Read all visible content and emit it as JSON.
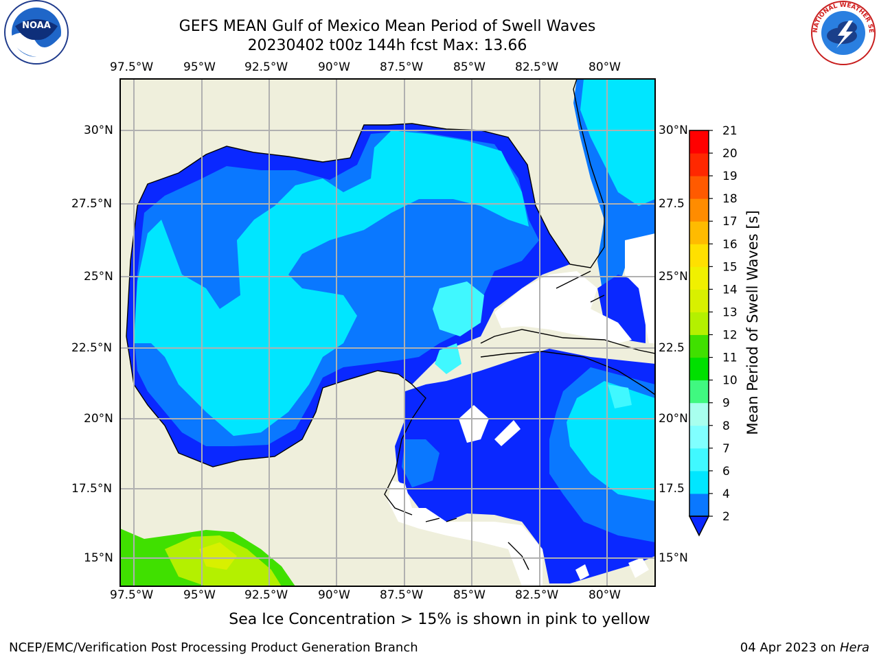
{
  "title": {
    "line1": "GEFS MEAN Gulf of Mexico Mean Period of Swell Waves",
    "line2": "20230402 t00z 144h fcst   Max: 13.66"
  },
  "map": {
    "lon_ticks": [
      "97.5°W",
      "95°W",
      "92.5°W",
      "90°W",
      "87.5°W",
      "85°W",
      "82.5°W",
      "80°W"
    ],
    "lat_ticks_left": [
      "30°N",
      "27.5°N",
      "25°N",
      "22.5°N",
      "20°N",
      "17.5°N",
      "15°N"
    ],
    "lat_ticks_right": [
      "30°N",
      "27.5",
      "25°N",
      "22.5",
      "20°N",
      "17.5",
      "15°N"
    ],
    "colors": {
      "land": "#efefdc",
      "frame": "#000000",
      "grid": "#b0b0b0"
    }
  },
  "colorbar": {
    "label": "Mean Period of Swell Waves [s]",
    "levels": [
      "2",
      "4",
      "6",
      "7",
      "8",
      "9",
      "10",
      "11",
      "12",
      "13",
      "14",
      "15",
      "16",
      "17",
      "18",
      "19",
      "20",
      "21"
    ],
    "colors": [
      "#0a28ff",
      "#0a78ff",
      "#00e6ff",
      "#40f8ff",
      "#80ffff",
      "#a8ffee",
      "#40f880",
      "#00e000",
      "#40e000",
      "#b4f000",
      "#d8f000",
      "#f0f000",
      "#ffe000",
      "#ffbb00",
      "#ff8c00",
      "#ff5a00",
      "#ff2800",
      "#ff0000"
    ]
  },
  "logos": {
    "left": "NOAA",
    "right": "NATIONAL WEATHER SERVICE"
  },
  "footer": {
    "note": "Sea Ice Concentration > 15% is shown in pink to yellow",
    "left": "NCEP/EMC/Verification Post Processing Product Generation Branch",
    "right_prefix": "04 Apr 2023 on ",
    "right_host": "Hera"
  }
}
